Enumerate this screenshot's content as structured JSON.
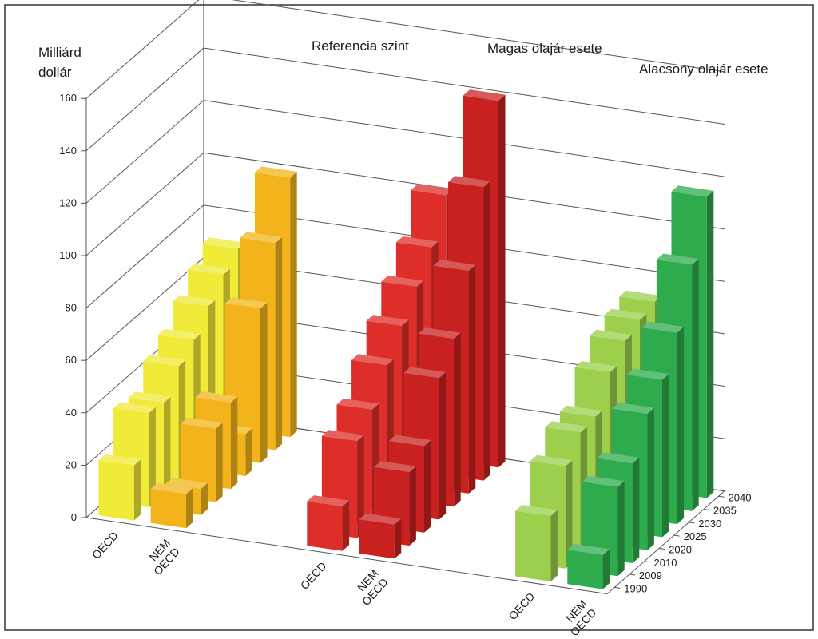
{
  "chart_data": {
    "type": "bar",
    "subtype": "3d-grouped",
    "ylabel_lines": [
      "Milliárd",
      "dollár"
    ],
    "ylim": [
      0,
      160
    ],
    "y_ticks": [
      0,
      20,
      40,
      60,
      80,
      100,
      120,
      140,
      160
    ],
    "years": [
      "1990",
      "2009",
      "2010",
      "2020",
      "2025",
      "2030",
      "2035",
      "2040"
    ],
    "groups": [
      {
        "title": "Referencia szint",
        "series": [
          {
            "name": "OECD",
            "category_lines": [
              "OECD"
            ],
            "color": "#f0ea38",
            "values": [
              21,
              36,
              35,
              44,
              49,
              57,
              64,
              69
            ]
          },
          {
            "name": "NEM OECD",
            "category_lines": [
              "NEM",
              "OECD"
            ],
            "color": "#f2b41a",
            "values": [
              13,
              10,
              28,
              33,
              16,
              59,
              79,
              99
            ]
          }
        ]
      },
      {
        "title": "Magas olajár esete",
        "series": [
          {
            "name": "OECD",
            "category_lines": [
              "OECD"
            ],
            "color": "#dd2e2a",
            "values": [
              17,
              37,
              44,
              56,
              66,
              76,
              86,
              101
            ]
          },
          {
            "name": "NEM OECD",
            "category_lines": [
              "NEM",
              "OECD"
            ],
            "color": "#c8211f",
            "values": [
              13,
              28,
              33,
              54,
              64,
              85,
              112,
              140
            ]
          }
        ]
      },
      {
        "title": "Alacsony olajár esete",
        "series": [
          {
            "name": "OECD",
            "category_lines": [
              "OECD"
            ],
            "color": "#9bcf4c",
            "values": [
              25,
              39,
              47,
              48,
              60,
              67,
              70,
              72
            ]
          },
          {
            "name": "NEM OECD",
            "category_lines": [
              "NEM",
              "OECD"
            ],
            "color": "#2eab4d",
            "values": [
              13,
              34,
              38,
              52,
              60,
              73,
              94,
              115
            ]
          }
        ]
      }
    ]
  }
}
